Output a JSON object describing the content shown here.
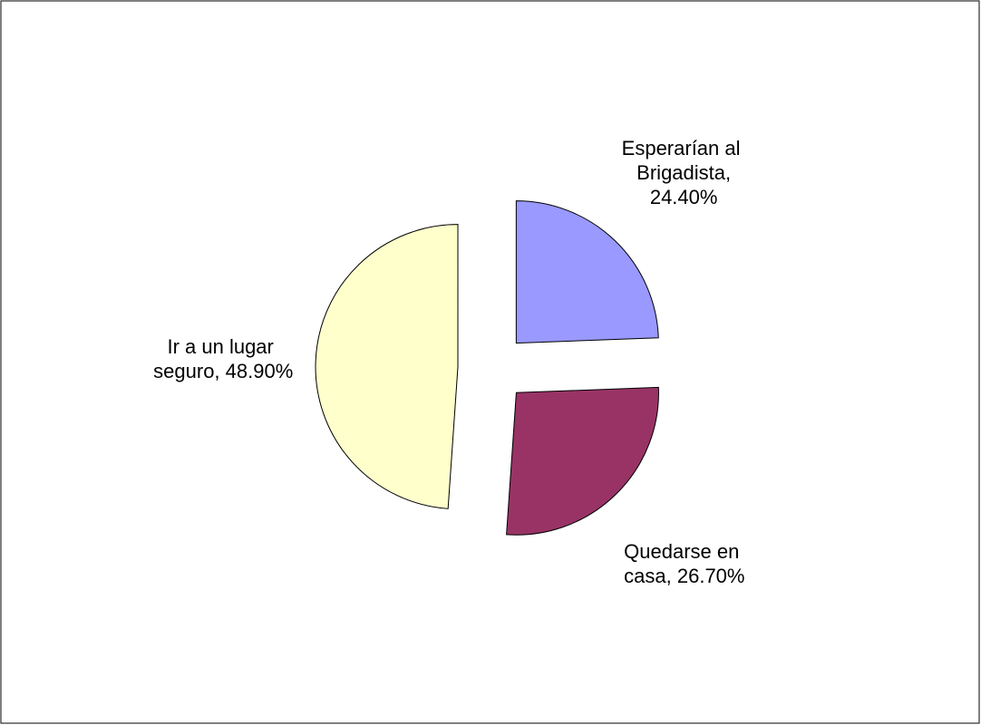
{
  "chart_data": {
    "type": "pie",
    "categories": [
      "Esperarían al Brigadista, 24.40%",
      "Quedarse en casa, 26.70%",
      "Ir a un lugar seguro, 48.90%"
    ],
    "values": [
      24.4,
      26.7,
      48.9
    ],
    "colors": [
      "#9999ff",
      "#993366",
      "#ffffcc"
    ],
    "exploded": true
  }
}
